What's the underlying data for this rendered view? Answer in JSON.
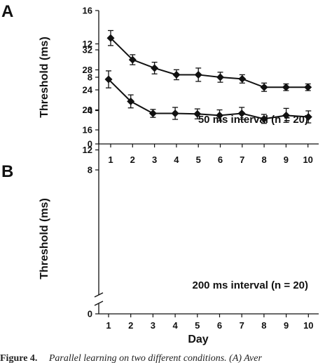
{
  "caption": {
    "label": "Figure 4.",
    "text": "Parallel learning on two different conditions. (A) Aver"
  },
  "chart_data": [
    {
      "panel": "A",
      "type": "line",
      "ylabel": "Threshold (ms)",
      "xlabel": "",
      "annotation": "50 ms interval (n = 20)",
      "ylim": [
        0,
        16
      ],
      "yticks": [
        0,
        4,
        8,
        12,
        16
      ],
      "x": [
        1,
        2,
        3,
        4,
        5,
        6,
        7,
        8,
        9,
        10
      ],
      "series": [
        {
          "values": [
            12.7,
            10.1,
            9.1,
            8.3,
            8.3,
            8.0,
            7.8,
            6.8,
            6.8,
            6.8
          ],
          "errors": [
            0.9,
            0.6,
            0.7,
            0.6,
            0.8,
            0.6,
            0.5,
            0.5,
            0.4,
            0.4
          ]
        }
      ]
    },
    {
      "panel": "B",
      "type": "line",
      "ylabel": "Threshold (ms)",
      "xlabel": "Day",
      "annotation": "200 ms interval (n = 20)",
      "ylim": [
        0,
        32
      ],
      "yticks": [
        0,
        8,
        12,
        16,
        20,
        24,
        28,
        32
      ],
      "axis_break": true,
      "x": [
        1,
        2,
        3,
        4,
        5,
        6,
        7,
        8,
        9,
        10
      ],
      "series": [
        {
          "values": [
            26.1,
            21.7,
            19.3,
            19.3,
            19.2,
            18.9,
            19.3,
            18.2,
            18.9,
            18.6
          ],
          "errors": [
            1.7,
            1.3,
            0.8,
            1.2,
            1.0,
            1.1,
            1.2,
            0.9,
            1.4,
            1.2
          ]
        }
      ]
    }
  ]
}
